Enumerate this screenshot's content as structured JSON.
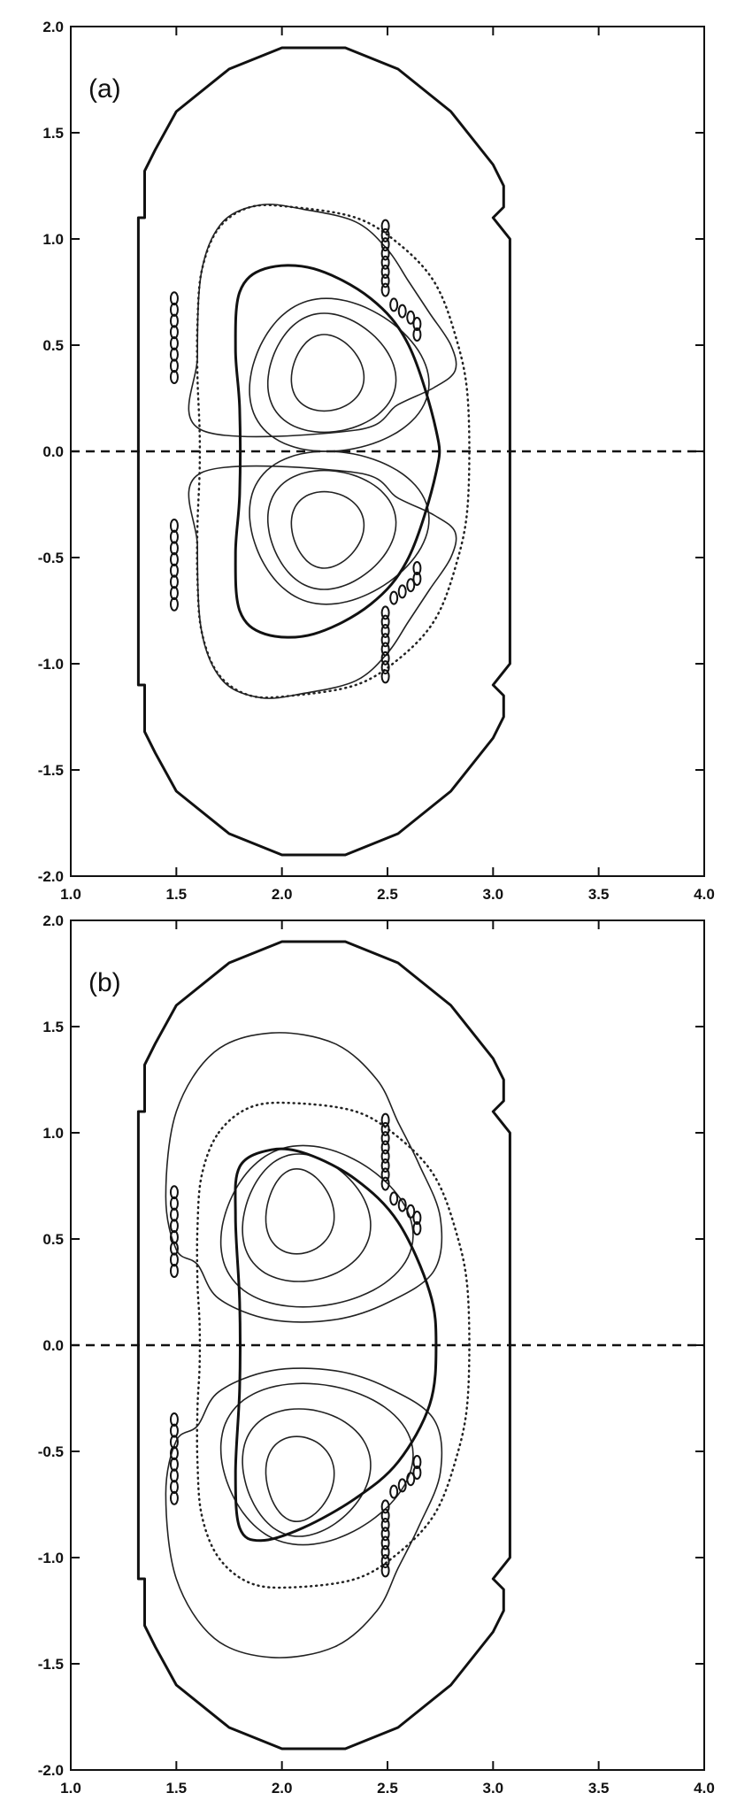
{
  "chart_data": [
    {
      "type": "contour",
      "panel_label": "(a)",
      "xlim": [
        1.0,
        4.0
      ],
      "ylim": [
        -2.0,
        2.0
      ],
      "x_ticks": [
        "1.0",
        "1.5",
        "2.0",
        "2.5",
        "3.0",
        "3.5",
        "4.0"
      ],
      "y_ticks": [
        "2.0",
        "1.5",
        "1.0",
        "0.5",
        "0.0",
        "-0.5",
        "-1.0",
        "-1.5",
        "-2.0"
      ],
      "grid": false,
      "midplane_y": 0.0,
      "vessel_boundary": [
        [
          2.0,
          1.9
        ],
        [
          2.3,
          1.9
        ],
        [
          2.55,
          1.8
        ],
        [
          2.8,
          1.6
        ],
        [
          3.0,
          1.35
        ],
        [
          3.05,
          1.25
        ],
        [
          3.05,
          1.15
        ],
        [
          3.0,
          1.1
        ],
        [
          3.08,
          1.0
        ],
        [
          3.08,
          -1.0
        ],
        [
          3.0,
          -1.1
        ],
        [
          3.05,
          -1.15
        ],
        [
          3.05,
          -1.25
        ],
        [
          3.0,
          -1.35
        ],
        [
          2.8,
          -1.6
        ],
        [
          2.55,
          -1.8
        ],
        [
          2.3,
          -1.9
        ],
        [
          2.0,
          -1.9
        ],
        [
          1.75,
          -1.8
        ],
        [
          1.5,
          -1.6
        ],
        [
          1.4,
          -1.42
        ],
        [
          1.35,
          -1.32
        ],
        [
          1.35,
          -1.1
        ],
        [
          1.32,
          -1.1
        ],
        [
          1.32,
          1.1
        ],
        [
          1.35,
          1.1
        ],
        [
          1.35,
          1.32
        ],
        [
          1.4,
          1.42
        ],
        [
          1.5,
          1.6
        ],
        [
          1.75,
          1.8
        ]
      ],
      "plasma_boundary": [
        [
          1.78,
          -0.48
        ],
        [
          1.8,
          -0.2
        ],
        [
          1.8,
          0.2
        ],
        [
          1.78,
          0.48
        ],
        [
          1.8,
          0.75
        ],
        [
          1.92,
          0.86
        ],
        [
          2.15,
          0.86
        ],
        [
          2.42,
          0.72
        ],
        [
          2.6,
          0.5
        ],
        [
          2.73,
          0.1
        ],
        [
          2.73,
          -0.1
        ],
        [
          2.6,
          -0.5
        ],
        [
          2.42,
          -0.72
        ],
        [
          2.15,
          -0.86
        ],
        [
          1.92,
          -0.86
        ],
        [
          1.8,
          -0.75
        ]
      ],
      "dotted_boundary": [
        [
          1.7,
          1.05
        ],
        [
          1.85,
          1.15
        ],
        [
          2.05,
          1.15
        ],
        [
          2.35,
          1.1
        ],
        [
          2.55,
          0.98
        ],
        [
          2.72,
          0.8
        ],
        [
          2.82,
          0.55
        ],
        [
          2.88,
          0.25
        ],
        [
          2.88,
          -0.25
        ],
        [
          2.82,
          -0.55
        ],
        [
          2.72,
          -0.8
        ],
        [
          2.55,
          -0.98
        ],
        [
          2.35,
          -1.1
        ],
        [
          2.05,
          -1.15
        ],
        [
          1.85,
          -1.15
        ],
        [
          1.7,
          -1.05
        ],
        [
          1.62,
          -0.85
        ],
        [
          1.6,
          -0.6
        ],
        [
          1.6,
          -0.35
        ],
        [
          1.61,
          -0.1
        ],
        [
          1.61,
          0.1
        ],
        [
          1.6,
          0.35
        ],
        [
          1.6,
          0.6
        ],
        [
          1.62,
          0.85
        ]
      ],
      "flux_contours": [
        {
          "cx": 2.2,
          "cy": 0.37,
          "rx": 0.17,
          "ry": 0.18,
          "pinch": 0.2
        },
        {
          "cx": 2.2,
          "cy": 0.37,
          "rx": 0.3,
          "ry": 0.28,
          "pinch": 0.25
        },
        {
          "cx": 2.21,
          "cy": 0.36,
          "rx": 0.42,
          "ry": 0.36,
          "pinch": 0.3
        },
        {
          "cx": 2.2,
          "cy": -0.37,
          "rx": 0.17,
          "ry": 0.18,
          "pinch": 0.2
        },
        {
          "cx": 2.2,
          "cy": -0.37,
          "rx": 0.3,
          "ry": 0.28,
          "pinch": 0.25
        },
        {
          "cx": 2.21,
          "cy": -0.36,
          "rx": 0.42,
          "ry": 0.36,
          "pinch": 0.3
        }
      ],
      "outer_contours": [
        [
          [
            1.62,
            0.1
          ],
          [
            1.6,
            0.45
          ],
          [
            1.62,
            0.85
          ],
          [
            1.72,
            1.08
          ],
          [
            1.9,
            1.16
          ],
          [
            2.1,
            1.14
          ],
          [
            2.35,
            1.08
          ],
          [
            2.5,
            0.95
          ],
          [
            2.6,
            0.8
          ],
          [
            2.7,
            0.65
          ],
          [
            2.8,
            0.5
          ],
          [
            2.82,
            0.38
          ],
          [
            2.72,
            0.3
          ],
          [
            2.55,
            0.22
          ],
          [
            2.35,
            0.1
          ]
        ],
        [
          [
            1.62,
            -0.1
          ],
          [
            1.6,
            -0.45
          ],
          [
            1.62,
            -0.85
          ],
          [
            1.72,
            -1.08
          ],
          [
            1.9,
            -1.16
          ],
          [
            2.1,
            -1.14
          ],
          [
            2.35,
            -1.08
          ],
          [
            2.5,
            -0.95
          ],
          [
            2.6,
            -0.8
          ],
          [
            2.7,
            -0.65
          ],
          [
            2.8,
            -0.5
          ],
          [
            2.82,
            -0.38
          ],
          [
            2.72,
            -0.3
          ],
          [
            2.55,
            -0.22
          ],
          [
            2.35,
            -0.1
          ]
        ]
      ],
      "coil_columns": [
        {
          "x": 1.49,
          "y_from": 0.35,
          "y_to": 0.72
        },
        {
          "x": 1.49,
          "y_from": -0.72,
          "y_to": -0.35
        },
        {
          "x": 2.49,
          "y_from": 0.76,
          "y_to": 1.06
        },
        {
          "x": 2.49,
          "y_from": -1.06,
          "y_to": -0.76
        }
      ],
      "coil_steps": [
        [
          2.53,
          0.69
        ],
        [
          2.57,
          0.66
        ],
        [
          2.61,
          0.63
        ],
        [
          2.64,
          0.6
        ],
        [
          2.64,
          0.55
        ],
        [
          2.53,
          -0.69
        ],
        [
          2.57,
          -0.66
        ],
        [
          2.61,
          -0.63
        ],
        [
          2.64,
          -0.6
        ],
        [
          2.64,
          -0.55
        ]
      ]
    },
    {
      "type": "contour",
      "panel_label": "(b)",
      "xlim": [
        1.0,
        4.0
      ],
      "ylim": [
        -2.0,
        2.0
      ],
      "x_ticks": [
        "1.0",
        "1.5",
        "2.0",
        "2.5",
        "3.0",
        "3.5",
        "4.0"
      ],
      "y_ticks": [
        "2.0",
        "1.5",
        "1.0",
        "0.5",
        "0.0",
        "-0.5",
        "-1.0",
        "-1.5",
        "-2.0"
      ],
      "grid": false,
      "midplane_y": 0.0,
      "vessel_boundary": [
        [
          2.0,
          1.9
        ],
        [
          2.3,
          1.9
        ],
        [
          2.55,
          1.8
        ],
        [
          2.8,
          1.6
        ],
        [
          3.0,
          1.35
        ],
        [
          3.05,
          1.25
        ],
        [
          3.05,
          1.15
        ],
        [
          3.0,
          1.1
        ],
        [
          3.08,
          1.0
        ],
        [
          3.08,
          -1.0
        ],
        [
          3.0,
          -1.1
        ],
        [
          3.05,
          -1.15
        ],
        [
          3.05,
          -1.25
        ],
        [
          3.0,
          -1.35
        ],
        [
          2.8,
          -1.6
        ],
        [
          2.55,
          -1.8
        ],
        [
          2.3,
          -1.9
        ],
        [
          2.0,
          -1.9
        ],
        [
          1.75,
          -1.8
        ],
        [
          1.5,
          -1.6
        ],
        [
          1.4,
          -1.42
        ],
        [
          1.35,
          -1.32
        ],
        [
          1.35,
          -1.1
        ],
        [
          1.32,
          -1.1
        ],
        [
          1.32,
          1.1
        ],
        [
          1.35,
          1.1
        ],
        [
          1.35,
          1.32
        ],
        [
          1.4,
          1.42
        ],
        [
          1.5,
          1.6
        ],
        [
          1.75,
          1.8
        ]
      ],
      "plasma_boundary": [
        [
          1.78,
          -0.6
        ],
        [
          1.8,
          -0.2
        ],
        [
          1.8,
          0.2
        ],
        [
          1.78,
          0.6
        ],
        [
          1.8,
          0.84
        ],
        [
          1.95,
          0.92
        ],
        [
          2.12,
          0.9
        ],
        [
          2.35,
          0.78
        ],
        [
          2.55,
          0.58
        ],
        [
          2.7,
          0.25
        ],
        [
          2.73,
          0.0
        ],
        [
          2.7,
          -0.28
        ],
        [
          2.55,
          -0.55
        ],
        [
          2.35,
          -0.72
        ],
        [
          2.1,
          -0.86
        ],
        [
          1.9,
          -0.92
        ],
        [
          1.8,
          -0.86
        ]
      ],
      "dotted_boundary": [
        [
          1.7,
          1.0
        ],
        [
          1.85,
          1.12
        ],
        [
          2.05,
          1.14
        ],
        [
          2.35,
          1.1
        ],
        [
          2.55,
          0.98
        ],
        [
          2.72,
          0.8
        ],
        [
          2.82,
          0.55
        ],
        [
          2.88,
          0.25
        ],
        [
          2.88,
          -0.25
        ],
        [
          2.82,
          -0.55
        ],
        [
          2.72,
          -0.8
        ],
        [
          2.55,
          -0.98
        ],
        [
          2.35,
          -1.1
        ],
        [
          2.05,
          -1.14
        ],
        [
          1.85,
          -1.12
        ],
        [
          1.7,
          -1.0
        ],
        [
          1.62,
          -0.8
        ],
        [
          1.6,
          -0.55
        ],
        [
          1.6,
          -0.3
        ],
        [
          1.61,
          -0.1
        ],
        [
          1.61,
          0.1
        ],
        [
          1.6,
          0.3
        ],
        [
          1.6,
          0.55
        ],
        [
          1.62,
          0.8
        ]
      ],
      "flux_contours": [
        {
          "cx": 2.07,
          "cy": 0.63,
          "rx": 0.16,
          "ry": 0.2,
          "pinch": 0.2
        },
        {
          "cx": 2.08,
          "cy": 0.6,
          "rx": 0.3,
          "ry": 0.3,
          "pinch": 0.25
        },
        {
          "cx": 2.1,
          "cy": 0.56,
          "rx": 0.45,
          "ry": 0.38,
          "pinch": 0.3
        },
        {
          "cx": 2.07,
          "cy": -0.63,
          "rx": 0.16,
          "ry": 0.2,
          "pinch": 0.2
        },
        {
          "cx": 2.08,
          "cy": -0.6,
          "rx": 0.3,
          "ry": 0.3,
          "pinch": 0.25
        },
        {
          "cx": 2.1,
          "cy": -0.56,
          "rx": 0.45,
          "ry": 0.38,
          "pinch": 0.3
        }
      ],
      "outer_contours": [
        [
          [
            1.7,
            0.22
          ],
          [
            1.6,
            0.38
          ],
          [
            1.5,
            0.45
          ],
          [
            1.45,
            0.7
          ],
          [
            1.5,
            1.1
          ],
          [
            1.68,
            1.38
          ],
          [
            1.95,
            1.47
          ],
          [
            2.25,
            1.42
          ],
          [
            2.45,
            1.25
          ],
          [
            2.55,
            1.05
          ],
          [
            2.65,
            0.85
          ],
          [
            2.75,
            0.6
          ],
          [
            2.72,
            0.35
          ],
          [
            2.5,
            0.2
          ],
          [
            2.25,
            0.12
          ],
          [
            1.95,
            0.12
          ]
        ],
        [
          [
            1.7,
            -0.22
          ],
          [
            1.6,
            -0.38
          ],
          [
            1.5,
            -0.45
          ],
          [
            1.45,
            -0.7
          ],
          [
            1.5,
            -1.1
          ],
          [
            1.68,
            -1.38
          ],
          [
            1.95,
            -1.47
          ],
          [
            2.25,
            -1.42
          ],
          [
            2.45,
            -1.25
          ],
          [
            2.55,
            -1.05
          ],
          [
            2.65,
            -0.85
          ],
          [
            2.75,
            -0.6
          ],
          [
            2.72,
            -0.35
          ],
          [
            2.5,
            -0.2
          ],
          [
            2.25,
            -0.12
          ],
          [
            1.95,
            -0.12
          ]
        ]
      ],
      "coil_columns": [
        {
          "x": 1.49,
          "y_from": 0.35,
          "y_to": 0.72
        },
        {
          "x": 1.49,
          "y_from": -0.72,
          "y_to": -0.35
        },
        {
          "x": 2.49,
          "y_from": 0.76,
          "y_to": 1.06
        },
        {
          "x": 2.49,
          "y_from": -1.06,
          "y_to": -0.76
        }
      ],
      "coil_steps": [
        [
          2.53,
          0.69
        ],
        [
          2.57,
          0.66
        ],
        [
          2.61,
          0.63
        ],
        [
          2.64,
          0.6
        ],
        [
          2.64,
          0.55
        ],
        [
          2.53,
          -0.69
        ],
        [
          2.57,
          -0.66
        ],
        [
          2.61,
          -0.63
        ],
        [
          2.64,
          -0.6
        ],
        [
          2.64,
          -0.55
        ]
      ]
    }
  ]
}
